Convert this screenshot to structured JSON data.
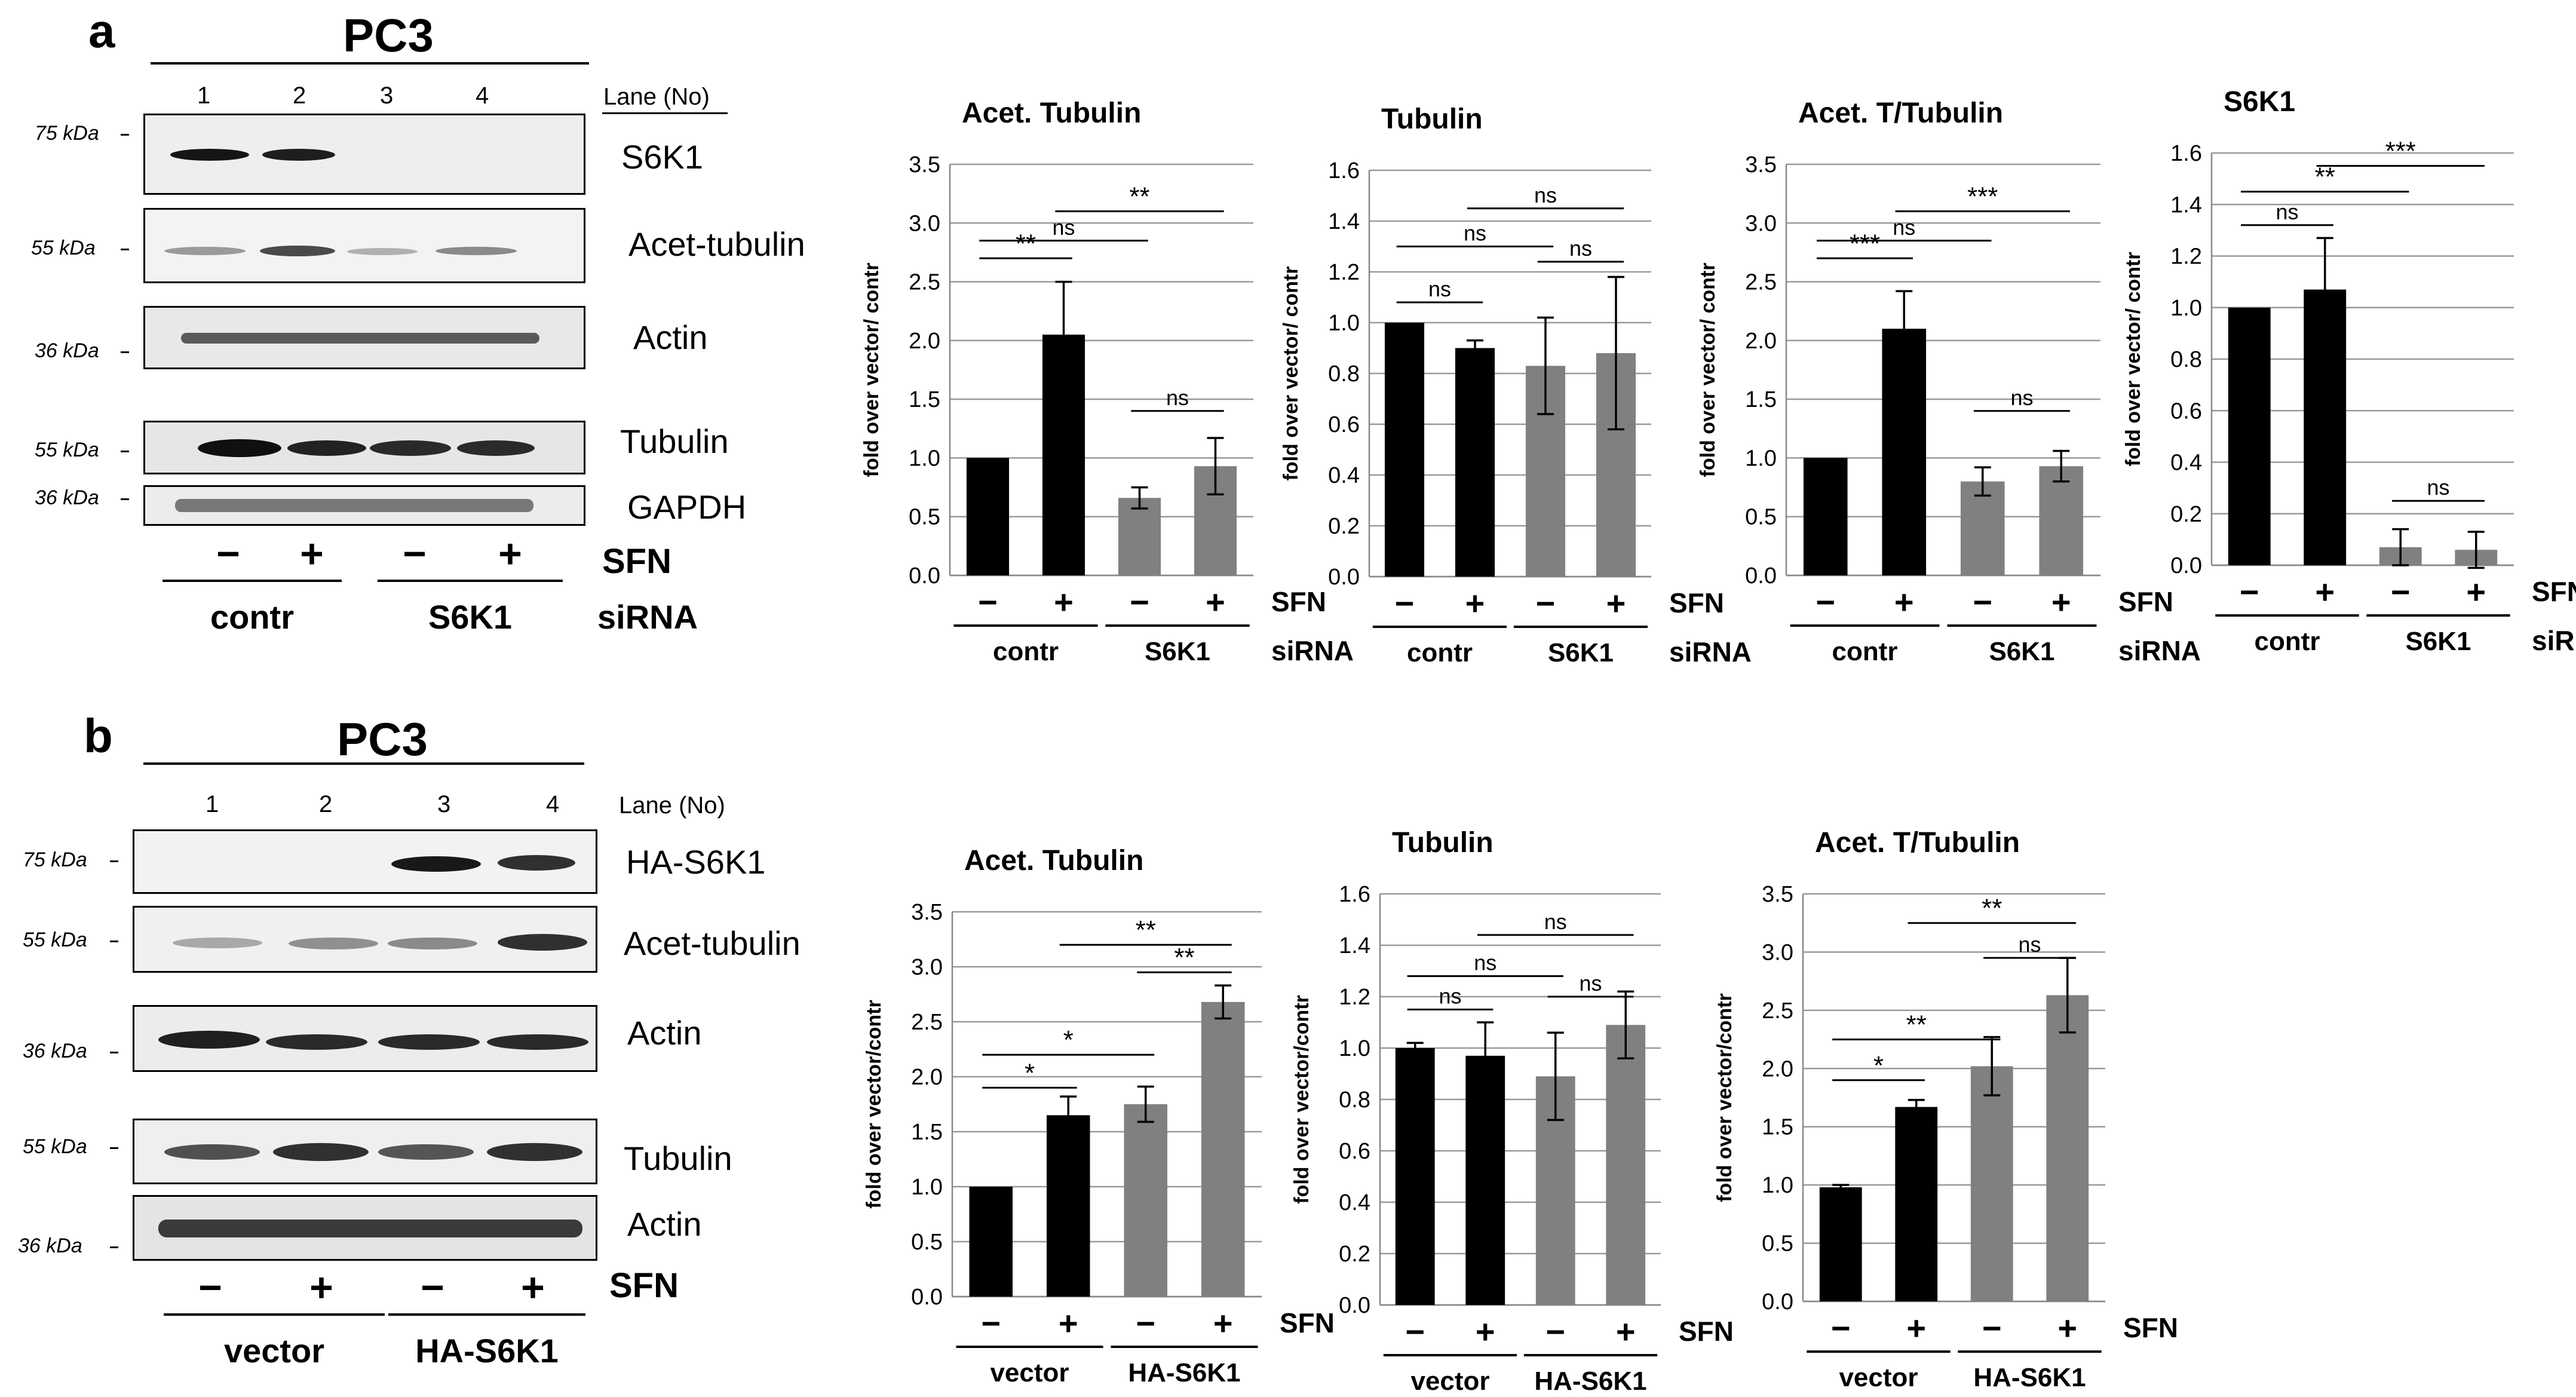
{
  "panel_a": {
    "letter": "a",
    "cell_line": "PC3",
    "lane_header": "Lane (No)",
    "lanes": [
      "1",
      "2",
      "3",
      "4"
    ],
    "blots": [
      {
        "kda": "75 kDa",
        "label": "S6K1"
      },
      {
        "kda": "55 kDa",
        "label": "Acet-tubulin"
      },
      {
        "kda": "36 kDa",
        "label": "Actin"
      },
      {
        "kda": "55 kDa",
        "label": "Tubulin"
      },
      {
        "kda": "36 kDa",
        "label": "GAPDH"
      }
    ],
    "signs": [
      "−",
      "+",
      "−",
      "+"
    ],
    "sfn_label": "SFN",
    "groups": [
      "contr",
      "S6K1"
    ],
    "group_suffix": "siRNA"
  },
  "panel_b": {
    "letter": "b",
    "cell_line": "PC3",
    "lane_header": "Lane (No)",
    "lanes": [
      "1",
      "2",
      "3",
      "4"
    ],
    "blots": [
      {
        "kda": "75 kDa",
        "label": "HA-S6K1"
      },
      {
        "kda": "55 kDa",
        "label": "Acet-tubulin"
      },
      {
        "kda": "36 kDa",
        "label": "Actin"
      },
      {
        "kda": "55 kDa",
        "label": "Tubulin"
      },
      {
        "kda": "36 kDa",
        "label": "Actin"
      }
    ],
    "signs": [
      "−",
      "+",
      "−",
      "+"
    ],
    "sfn_label": "SFN",
    "groups": [
      "vector",
      "HA-S6K1"
    ]
  },
  "chart_data": [
    {
      "type": "bar",
      "title": "Acet. Tubulin",
      "ylabel": "fold over vector/ contr",
      "ylim": [
        0,
        3.5
      ],
      "yticks": [
        "0.0",
        "0.5",
        "1.0",
        "1.5",
        "2.0",
        "2.5",
        "3.0",
        "3.5"
      ],
      "categories": [
        "−",
        "+",
        "−",
        "+"
      ],
      "values": [
        1.0,
        2.05,
        0.66,
        0.93
      ],
      "errors": [
        0,
        0.45,
        0.09,
        0.24
      ],
      "colors": [
        "#000000",
        "#000000",
        "#808080",
        "#808080"
      ],
      "sfn_label": "SFN",
      "groups": [
        "contr",
        "S6K1"
      ],
      "group_suffix": "siRNA",
      "sig": [
        {
          "a": 0,
          "b": 1,
          "y": 2.7,
          "text": "**"
        },
        {
          "a": 0,
          "b": 2,
          "y": 2.85,
          "text": "ns"
        },
        {
          "a": 1,
          "b": 3,
          "y": 3.1,
          "text": "**"
        },
        {
          "a": 2,
          "b": 3,
          "y": 1.4,
          "text": "ns"
        }
      ]
    },
    {
      "type": "bar",
      "title": "Tubulin",
      "ylabel": "fold over vector/ contr",
      "ylim": [
        0,
        1.6
      ],
      "yticks": [
        "0.0",
        "0.2",
        "0.4",
        "0.6",
        "0.8",
        "1.0",
        "1.2",
        "1.4",
        "1.6"
      ],
      "categories": [
        "−",
        "+",
        "−",
        "+"
      ],
      "values": [
        1.0,
        0.9,
        0.83,
        0.88
      ],
      "errors": [
        0,
        0.03,
        0.19,
        0.3
      ],
      "colors": [
        "#000000",
        "#000000",
        "#808080",
        "#808080"
      ],
      "sfn_label": "SFN",
      "groups": [
        "contr",
        "S6K1"
      ],
      "group_suffix": "siRNA",
      "sig": [
        {
          "a": 0,
          "b": 1,
          "y": 1.08,
          "text": "ns"
        },
        {
          "a": 0,
          "b": 2,
          "y": 1.3,
          "text": "ns"
        },
        {
          "a": 1,
          "b": 3,
          "y": 1.45,
          "text": "ns"
        },
        {
          "a": 2,
          "b": 3,
          "y": 1.24,
          "text": "ns"
        }
      ]
    },
    {
      "type": "bar",
      "title": "Acet.  T/Tubulin",
      "ylabel": "fold over vector/ contr",
      "ylim": [
        0,
        3.5
      ],
      "yticks": [
        "0.0",
        "0.5",
        "1.0",
        "1.5",
        "2.0",
        "2.5",
        "3.0",
        "3.5"
      ],
      "categories": [
        "−",
        "+",
        "−",
        "+"
      ],
      "values": [
        1.0,
        2.1,
        0.8,
        0.93
      ],
      "errors": [
        0,
        0.32,
        0.12,
        0.13
      ],
      "colors": [
        "#000000",
        "#000000",
        "#808080",
        "#808080"
      ],
      "sfn_label": "SFN",
      "groups": [
        "contr",
        "S6K1"
      ],
      "group_suffix": "siRNA",
      "sig": [
        {
          "a": 0,
          "b": 1,
          "y": 2.7,
          "text": "***"
        },
        {
          "a": 0,
          "b": 2,
          "y": 2.85,
          "text": "ns"
        },
        {
          "a": 1,
          "b": 3,
          "y": 3.1,
          "text": "***"
        },
        {
          "a": 2,
          "b": 3,
          "y": 1.4,
          "text": "ns"
        }
      ]
    },
    {
      "type": "bar",
      "title": "S6K1",
      "ylabel": "fold over vector/ contr",
      "ylim": [
        0,
        1.6
      ],
      "yticks": [
        "0.0",
        "0.2",
        "0.4",
        "0.6",
        "0.8",
        "1.0",
        "1.2",
        "1.4",
        "1.6"
      ],
      "categories": [
        "−",
        "+",
        "−",
        "+"
      ],
      "values": [
        1.0,
        1.07,
        0.07,
        0.06
      ],
      "errors": [
        0,
        0.2,
        0.07,
        0.07
      ],
      "colors": [
        "#000000",
        "#000000",
        "#808080",
        "#808080"
      ],
      "sfn_label": "SFN",
      "groups": [
        "contr",
        "S6K1"
      ],
      "group_suffix": "siRNA",
      "sig": [
        {
          "a": 0,
          "b": 1,
          "y": 1.32,
          "text": "ns"
        },
        {
          "a": 0,
          "b": 2,
          "y": 1.45,
          "text": "**"
        },
        {
          "a": 1,
          "b": 3,
          "y": 1.55,
          "text": "***"
        },
        {
          "a": 2,
          "b": 3,
          "y": 0.25,
          "text": "ns"
        }
      ]
    },
    {
      "type": "bar",
      "title": "Acet. Tubulin",
      "ylabel": "fold over vector/contr",
      "ylim": [
        0,
        3.5
      ],
      "yticks": [
        "0.0",
        "0.5",
        "1.0",
        "1.5",
        "2.0",
        "2.5",
        "3.0",
        "3.5"
      ],
      "categories": [
        "−",
        "+",
        "−",
        "+"
      ],
      "values": [
        1.0,
        1.65,
        1.75,
        2.68
      ],
      "errors": [
        0,
        0.17,
        0.16,
        0.15
      ],
      "colors": [
        "#000000",
        "#000000",
        "#808080",
        "#808080"
      ],
      "sfn_label": "SFN",
      "groups": [
        "vector",
        "HA-S6K1"
      ],
      "sig": [
        {
          "a": 0,
          "b": 1,
          "y": 1.9,
          "text": "*"
        },
        {
          "a": 0,
          "b": 2,
          "y": 2.2,
          "text": "*"
        },
        {
          "a": 2,
          "b": 3,
          "y": 2.95,
          "text": "**"
        },
        {
          "a": 1,
          "b": 3,
          "y": 3.2,
          "text": "**"
        }
      ]
    },
    {
      "type": "bar",
      "title": "Tubulin",
      "ylabel": "fold over vector/contr",
      "ylim": [
        0,
        1.6
      ],
      "yticks": [
        "0.0",
        "0.2",
        "0.4",
        "0.6",
        "0.8",
        "1.0",
        "1.2",
        "1.4",
        "1.6"
      ],
      "categories": [
        "−",
        "+",
        "−",
        "+"
      ],
      "values": [
        1.0,
        0.97,
        0.89,
        1.09
      ],
      "errors": [
        0.02,
        0.13,
        0.17,
        0.13
      ],
      "colors": [
        "#000000",
        "#000000",
        "#808080",
        "#808080"
      ],
      "sfn_label": "SFN",
      "groups": [
        "vector",
        "HA-S6K1"
      ],
      "sig": [
        {
          "a": 0,
          "b": 1,
          "y": 1.15,
          "text": "ns"
        },
        {
          "a": 0,
          "b": 2,
          "y": 1.28,
          "text": "ns"
        },
        {
          "a": 2,
          "b": 3,
          "y": 1.2,
          "text": "ns"
        },
        {
          "a": 1,
          "b": 3,
          "y": 1.44,
          "text": "ns"
        }
      ]
    },
    {
      "type": "bar",
      "title": "Acet. T/Tubulin",
      "ylabel": "fold over vector/contr",
      "ylim": [
        0,
        3.5
      ],
      "yticks": [
        "0.0",
        "0.5",
        "1.0",
        "1.5",
        "2.0",
        "2.5",
        "3.0",
        "3.5"
      ],
      "categories": [
        "−",
        "+",
        "−",
        "+"
      ],
      "values": [
        0.98,
        1.67,
        2.02,
        2.63
      ],
      "errors": [
        0.02,
        0.06,
        0.25,
        0.32
      ],
      "colors": [
        "#000000",
        "#000000",
        "#808080",
        "#808080"
      ],
      "sfn_label": "SFN",
      "groups": [
        "vector",
        "HA-S6K1"
      ],
      "sig": [
        {
          "a": 0,
          "b": 1,
          "y": 1.9,
          "text": "*"
        },
        {
          "a": 0,
          "b": 2,
          "y": 2.25,
          "text": "**"
        },
        {
          "a": 2,
          "b": 3,
          "y": 2.95,
          "text": "ns"
        },
        {
          "a": 1,
          "b": 3,
          "y": 3.25,
          "text": "**"
        }
      ]
    }
  ]
}
